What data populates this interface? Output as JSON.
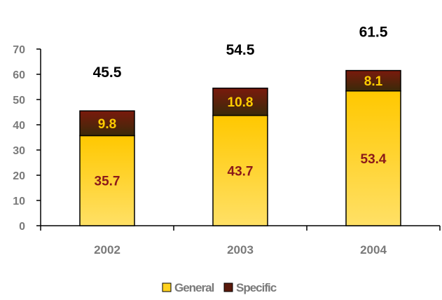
{
  "chart_data": {
    "type": "bar",
    "stacked": true,
    "categories": [
      "2002",
      "2003",
      "2004"
    ],
    "series": [
      {
        "name": "General",
        "values": [
          35.7,
          43.7,
          53.4
        ],
        "color": "#ffd21f"
      },
      {
        "name": "Specific",
        "values": [
          9.8,
          10.8,
          8.1
        ],
        "color": "#5a1a0c"
      }
    ],
    "totals": [
      45.5,
      54.5,
      61.5
    ],
    "title": "",
    "xlabel": "",
    "ylabel": "",
    "ylim": [
      0,
      70
    ],
    "yticks": [
      0,
      10,
      20,
      30,
      40,
      50,
      60,
      70
    ],
    "grid": false,
    "legend": "bottom"
  }
}
